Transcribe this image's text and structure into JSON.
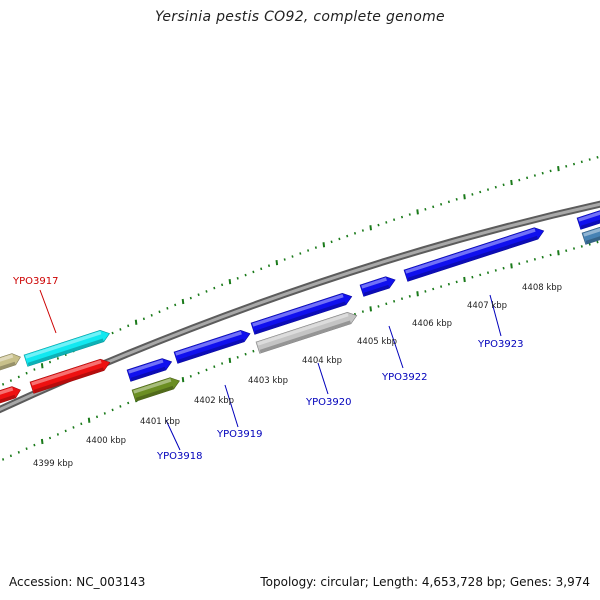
{
  "title": "Yersinia pestis CO92, complete genome",
  "footer": {
    "accession": "Accession: NC_003143",
    "topology": "Topology: circular; Length: 4,653,728 bp; Genes: 3,974"
  },
  "scale_labels": [
    "4399 kbp",
    "4400 kbp",
    "4401 kbp",
    "4402 kbp",
    "4403 kbp",
    "4404 kbp",
    "4405 kbp",
    "4406 kbp",
    "4407 kbp",
    "4408 kbp"
  ],
  "gene_labels": [
    {
      "text": "YPO3917",
      "color": "#cc0000"
    },
    {
      "text": "YPO3918",
      "color": "#0000bb"
    },
    {
      "text": "YPO3919",
      "color": "#0000bb"
    },
    {
      "text": "YPO3920",
      "color": "#0000bb"
    },
    {
      "text": "YPO3922",
      "color": "#0000bb"
    },
    {
      "text": "YPO3923",
      "color": "#0000bb"
    }
  ],
  "colors": {
    "backbone": "#8a8a8a",
    "ticks": "#1a7a1a",
    "cds_blue": "#1010ee",
    "cds_red": "#ee1111",
    "cds_cyan": "#11e8f0",
    "cds_olive": "#6b8e23",
    "cds_tan": "#c8c08a",
    "cds_gray": "#c4c4c4",
    "cds_steel": "#4682b4"
  }
}
